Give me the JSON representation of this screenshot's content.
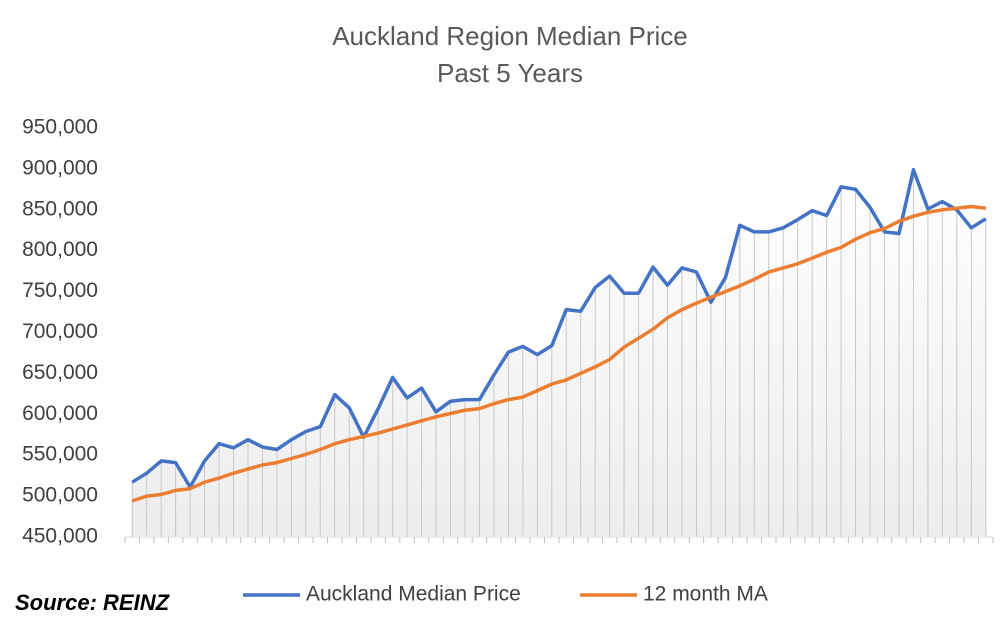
{
  "chart_data": {
    "type": "line",
    "title": "Auckland Region Median Price",
    "subtitle": "Past 5 Years",
    "source": "Source:  REINZ",
    "categories": [
      null,
      null,
      null,
      null,
      null,
      null,
      null,
      null,
      null,
      null,
      null,
      null,
      null,
      null,
      null,
      null,
      null,
      null,
      null,
      null,
      null,
      null,
      null,
      null,
      null,
      null,
      null,
      null,
      null,
      null,
      null,
      null,
      null,
      null,
      null,
      null,
      null,
      null,
      null,
      null,
      null,
      null,
      null,
      null,
      null,
      null,
      null,
      null,
      null,
      null,
      null,
      null,
      null,
      null,
      null,
      null,
      null,
      null,
      null,
      null
    ],
    "series": [
      {
        "name": "Auckland Median Price",
        "color": "#4472c4",
        "drop_lines": true,
        "values": [
          517000,
          528000,
          543000,
          541000,
          511000,
          543000,
          564000,
          559000,
          569000,
          560000,
          557000,
          569000,
          579000,
          585000,
          624000,
          608000,
          572000,
          607000,
          645000,
          620000,
          632000,
          603000,
          616000,
          618000,
          618000,
          648000,
          676000,
          683000,
          673000,
          684000,
          728000,
          726000,
          755000,
          769000,
          748000,
          748000,
          780000,
          758000,
          779000,
          774000,
          737000,
          767000,
          831000,
          823000,
          823000,
          828000,
          838000,
          849000,
          843000,
          878000,
          875000,
          853000,
          823000,
          821000,
          899000,
          851000,
          860000,
          850000,
          828000,
          839000
        ]
      },
      {
        "name": "12 month MA",
        "color": "#ed7d31",
        "values": [
          494000,
          500000,
          502000,
          507000,
          509000,
          517000,
          522000,
          528000,
          533000,
          538000,
          541000,
          546000,
          551000,
          557000,
          564000,
          569000,
          573000,
          577000,
          582000,
          587000,
          592000,
          597000,
          601000,
          605000,
          607000,
          613000,
          618000,
          621000,
          629000,
          637000,
          642000,
          650000,
          658000,
          667000,
          682000,
          693000,
          704000,
          718000,
          728000,
          736000,
          743000,
          750000,
          757000,
          765000,
          774000,
          779000,
          784000,
          791000,
          798000,
          804000,
          814000,
          822000,
          827000,
          836000,
          842000,
          847000,
          850000,
          852000,
          854000,
          852000
        ]
      }
    ],
    "ylim": [
      450000,
      950000
    ],
    "yticks": [
      {
        "value": 450000,
        "label": "450,000"
      },
      {
        "value": 500000,
        "label": "500,000"
      },
      {
        "value": 550000,
        "label": "550,000"
      },
      {
        "value": 600000,
        "label": "600,000"
      },
      {
        "value": 650000,
        "label": "650,000"
      },
      {
        "value": 700000,
        "label": "700,000"
      },
      {
        "value": 750000,
        "label": "750,000"
      },
      {
        "value": 800000,
        "label": "800,000"
      },
      {
        "value": 850000,
        "label": "850,000"
      },
      {
        "value": 900000,
        "label": "900,000"
      },
      {
        "value": 950000,
        "label": "950,000"
      }
    ],
    "grid": false,
    "legend": "bottom"
  }
}
